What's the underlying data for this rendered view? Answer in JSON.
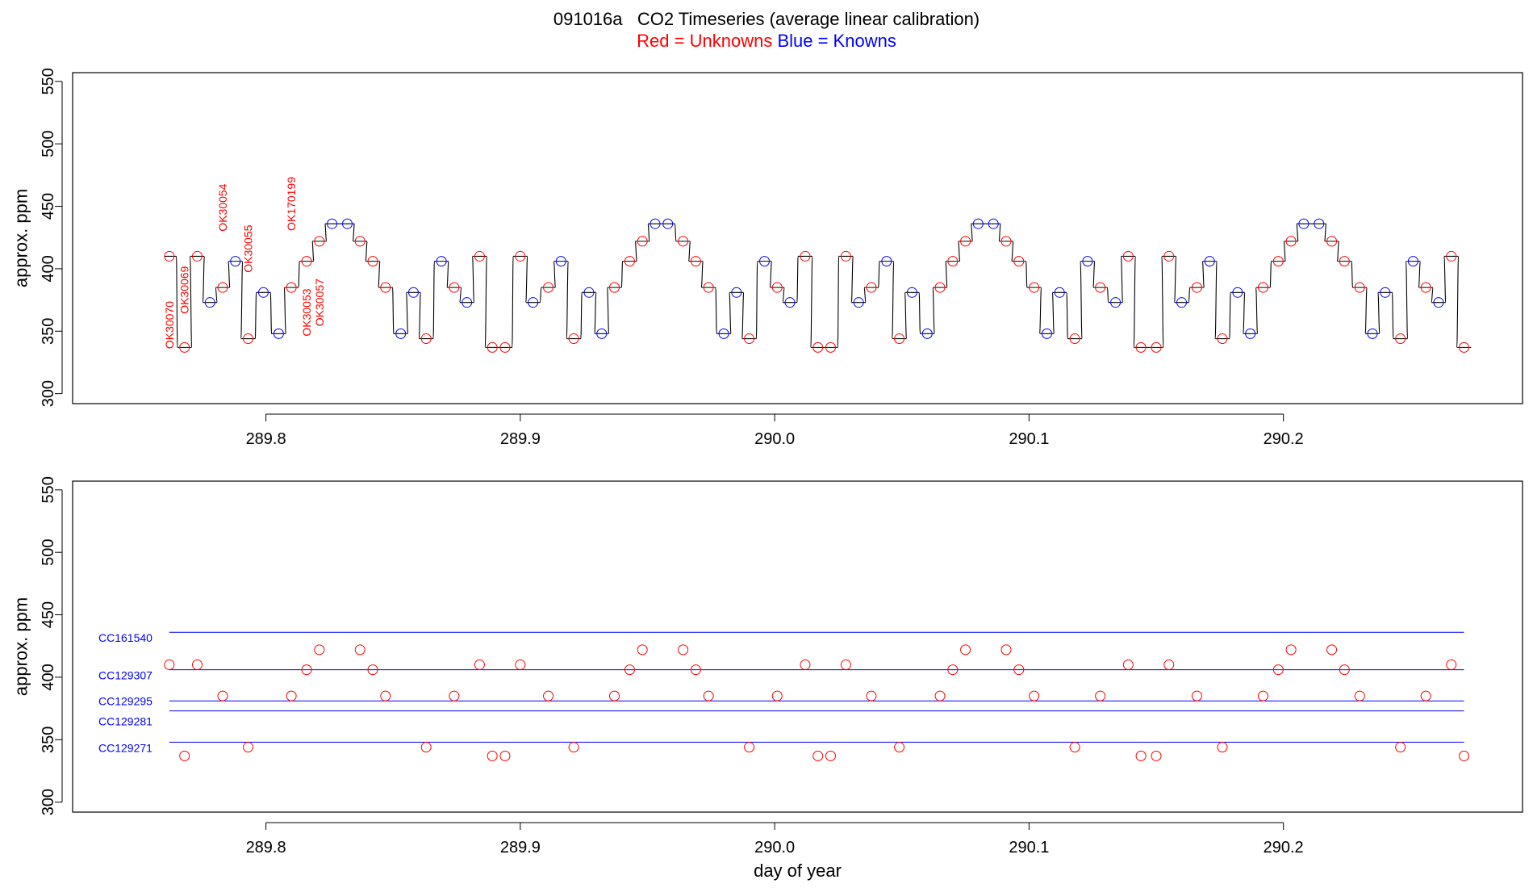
{
  "header": {
    "title": "091016a   CO2 Timeseries (average linear calibration)",
    "legend_red": "Red = Unknowns",
    "legend_blue": "Blue = Knowns"
  },
  "colors": {
    "unknown": "#ff0000",
    "known": "#0000ff",
    "trace": "#000000"
  },
  "chart_data": [
    {
      "type": "line",
      "ylabel": "approx. ppm",
      "xlabel": "",
      "xlim": [
        289.724,
        290.294
      ],
      "ylim": [
        292,
        557
      ],
      "xticks": [
        289.8,
        289.9,
        290.0,
        290.1,
        290.2
      ],
      "xtick_labels": [
        "289.8",
        "289.9",
        "290.0",
        "290.1",
        "290.2"
      ],
      "yticks": [
        300,
        350,
        400,
        450,
        500,
        550
      ],
      "ytick_labels": [
        "300",
        "350",
        "400",
        "450",
        "500",
        "550"
      ],
      "points": [
        {
          "x": 289.762,
          "y": 410,
          "t": "u"
        },
        {
          "x": 289.768,
          "y": 337,
          "t": "u"
        },
        {
          "x": 289.773,
          "y": 410,
          "t": "u"
        },
        {
          "x": 289.778,
          "y": 373,
          "t": "k"
        },
        {
          "x": 289.783,
          "y": 385,
          "t": "u"
        },
        {
          "x": 289.788,
          "y": 406,
          "t": "k"
        },
        {
          "x": 289.793,
          "y": 344,
          "t": "u"
        },
        {
          "x": 289.799,
          "y": 381,
          "t": "k"
        },
        {
          "x": 289.805,
          "y": 348,
          "t": "k"
        },
        {
          "x": 289.81,
          "y": 385,
          "t": "u"
        },
        {
          "x": 289.816,
          "y": 406,
          "t": "u"
        },
        {
          "x": 289.821,
          "y": 422,
          "t": "u"
        },
        {
          "x": 289.826,
          "y": 436,
          "t": "k"
        },
        {
          "x": 289.832,
          "y": 436,
          "t": "k"
        },
        {
          "x": 289.837,
          "y": 422,
          "t": "u"
        },
        {
          "x": 289.842,
          "y": 406,
          "t": "u"
        },
        {
          "x": 289.847,
          "y": 385,
          "t": "u"
        },
        {
          "x": 289.853,
          "y": 348,
          "t": "k"
        },
        {
          "x": 289.858,
          "y": 381,
          "t": "k"
        },
        {
          "x": 289.863,
          "y": 344,
          "t": "u"
        },
        {
          "x": 289.869,
          "y": 406,
          "t": "k"
        },
        {
          "x": 289.874,
          "y": 385,
          "t": "u"
        },
        {
          "x": 289.879,
          "y": 373,
          "t": "k"
        },
        {
          "x": 289.884,
          "y": 410,
          "t": "u"
        },
        {
          "x": 289.889,
          "y": 337,
          "t": "u"
        },
        {
          "x": 289.894,
          "y": 337,
          "t": "u"
        },
        {
          "x": 289.9,
          "y": 410,
          "t": "u"
        },
        {
          "x": 289.905,
          "y": 373,
          "t": "k"
        },
        {
          "x": 289.911,
          "y": 385,
          "t": "u"
        },
        {
          "x": 289.916,
          "y": 406,
          "t": "k"
        },
        {
          "x": 289.921,
          "y": 344,
          "t": "u"
        },
        {
          "x": 289.927,
          "y": 381,
          "t": "k"
        },
        {
          "x": 289.932,
          "y": 348,
          "t": "k"
        },
        {
          "x": 289.937,
          "y": 385,
          "t": "u"
        },
        {
          "x": 289.943,
          "y": 406,
          "t": "u"
        },
        {
          "x": 289.948,
          "y": 422,
          "t": "u"
        },
        {
          "x": 289.953,
          "y": 436,
          "t": "k"
        },
        {
          "x": 289.958,
          "y": 436,
          "t": "k"
        },
        {
          "x": 289.964,
          "y": 422,
          "t": "u"
        },
        {
          "x": 289.969,
          "y": 406,
          "t": "u"
        },
        {
          "x": 289.974,
          "y": 385,
          "t": "u"
        },
        {
          "x": 289.98,
          "y": 348,
          "t": "k"
        },
        {
          "x": 289.985,
          "y": 381,
          "t": "k"
        },
        {
          "x": 289.99,
          "y": 344,
          "t": "u"
        },
        {
          "x": 289.996,
          "y": 406,
          "t": "k"
        },
        {
          "x": 290.001,
          "y": 385,
          "t": "u"
        },
        {
          "x": 290.006,
          "y": 373,
          "t": "k"
        },
        {
          "x": 290.012,
          "y": 410,
          "t": "u"
        },
        {
          "x": 290.017,
          "y": 337,
          "t": "u"
        },
        {
          "x": 290.022,
          "y": 337,
          "t": "u"
        },
        {
          "x": 290.028,
          "y": 410,
          "t": "u"
        },
        {
          "x": 290.033,
          "y": 373,
          "t": "k"
        },
        {
          "x": 290.038,
          "y": 385,
          "t": "u"
        },
        {
          "x": 290.044,
          "y": 406,
          "t": "k"
        },
        {
          "x": 290.049,
          "y": 344,
          "t": "u"
        },
        {
          "x": 290.054,
          "y": 381,
          "t": "k"
        },
        {
          "x": 290.06,
          "y": 348,
          "t": "k"
        },
        {
          "x": 290.065,
          "y": 385,
          "t": "u"
        },
        {
          "x": 290.07,
          "y": 406,
          "t": "u"
        },
        {
          "x": 290.075,
          "y": 422,
          "t": "u"
        },
        {
          "x": 290.08,
          "y": 436,
          "t": "k"
        },
        {
          "x": 290.086,
          "y": 436,
          "t": "k"
        },
        {
          "x": 290.091,
          "y": 422,
          "t": "u"
        },
        {
          "x": 290.096,
          "y": 406,
          "t": "u"
        },
        {
          "x": 290.102,
          "y": 385,
          "t": "u"
        },
        {
          "x": 290.107,
          "y": 348,
          "t": "k"
        },
        {
          "x": 290.112,
          "y": 381,
          "t": "k"
        },
        {
          "x": 290.118,
          "y": 344,
          "t": "u"
        },
        {
          "x": 290.123,
          "y": 406,
          "t": "k"
        },
        {
          "x": 290.128,
          "y": 385,
          "t": "u"
        },
        {
          "x": 290.134,
          "y": 373,
          "t": "k"
        },
        {
          "x": 290.139,
          "y": 410,
          "t": "u"
        },
        {
          "x": 290.144,
          "y": 337,
          "t": "u"
        },
        {
          "x": 290.15,
          "y": 337,
          "t": "u"
        },
        {
          "x": 290.155,
          "y": 410,
          "t": "u"
        },
        {
          "x": 290.16,
          "y": 373,
          "t": "k"
        },
        {
          "x": 290.166,
          "y": 385,
          "t": "u"
        },
        {
          "x": 290.171,
          "y": 406,
          "t": "k"
        },
        {
          "x": 290.176,
          "y": 344,
          "t": "u"
        },
        {
          "x": 290.182,
          "y": 381,
          "t": "k"
        },
        {
          "x": 290.187,
          "y": 348,
          "t": "k"
        },
        {
          "x": 290.192,
          "y": 385,
          "t": "u"
        },
        {
          "x": 290.198,
          "y": 406,
          "t": "u"
        },
        {
          "x": 290.203,
          "y": 422,
          "t": "u"
        },
        {
          "x": 290.208,
          "y": 436,
          "t": "k"
        },
        {
          "x": 290.214,
          "y": 436,
          "t": "k"
        },
        {
          "x": 290.219,
          "y": 422,
          "t": "u"
        },
        {
          "x": 290.224,
          "y": 406,
          "t": "u"
        },
        {
          "x": 290.23,
          "y": 385,
          "t": "u"
        },
        {
          "x": 290.235,
          "y": 348,
          "t": "k"
        },
        {
          "x": 290.24,
          "y": 381,
          "t": "k"
        },
        {
          "x": 290.246,
          "y": 344,
          "t": "u"
        },
        {
          "x": 290.251,
          "y": 406,
          "t": "k"
        },
        {
          "x": 290.256,
          "y": 385,
          "t": "u"
        },
        {
          "x": 290.261,
          "y": 373,
          "t": "k"
        },
        {
          "x": 290.266,
          "y": 410,
          "t": "u"
        },
        {
          "x": 290.271,
          "y": 337,
          "t": "u"
        }
      ],
      "annotations": [
        {
          "text": "OK30070",
          "x": 289.762,
          "y": 355
        },
        {
          "text": "OK30069",
          "x": 289.768,
          "y": 383
        },
        {
          "text": "OK30054",
          "x": 289.783,
          "y": 449
        },
        {
          "text": "OK30055",
          "x": 289.793,
          "y": 416
        },
        {
          "text": "OK170199",
          "x": 289.81,
          "y": 452
        },
        {
          "text": "OK30053",
          "x": 289.816,
          "y": 365
        },
        {
          "text": "OK30057",
          "x": 289.821,
          "y": 373
        }
      ]
    },
    {
      "type": "scatter",
      "ylabel": "approx. ppm",
      "xlabel": "day of year",
      "xlim": [
        289.724,
        290.294
      ],
      "ylim": [
        292,
        557
      ],
      "xticks": [
        289.8,
        289.9,
        290.0,
        290.1,
        290.2
      ],
      "xtick_labels": [
        "289.8",
        "289.9",
        "290.0",
        "290.1",
        "290.2"
      ],
      "yticks": [
        300,
        350,
        400,
        450,
        500,
        550
      ],
      "ytick_labels": [
        "300",
        "350",
        "400",
        "450",
        "500",
        "550"
      ],
      "reference_lines": [
        {
          "name": "CC161540",
          "y": 436
        },
        {
          "name": "CC129307",
          "y": 406
        },
        {
          "name": "CC129295",
          "y": 381
        },
        {
          "name": "CC129281",
          "y": 373
        },
        {
          "name": "CC129271",
          "y": 348
        }
      ],
      "unknowns": [
        [
          289.762,
          410
        ],
        [
          289.768,
          337
        ],
        [
          289.773,
          410
        ],
        [
          289.783,
          385
        ],
        [
          289.793,
          344
        ],
        [
          289.81,
          385
        ],
        [
          289.816,
          406
        ],
        [
          289.821,
          422
        ],
        [
          289.837,
          422
        ],
        [
          289.842,
          406
        ],
        [
          289.847,
          385
        ],
        [
          289.863,
          344
        ],
        [
          289.874,
          385
        ],
        [
          289.884,
          410
        ],
        [
          289.889,
          337
        ],
        [
          289.894,
          337
        ],
        [
          289.9,
          410
        ],
        [
          289.911,
          385
        ],
        [
          289.921,
          344
        ],
        [
          289.937,
          385
        ],
        [
          289.943,
          406
        ],
        [
          289.948,
          422
        ],
        [
          289.964,
          422
        ],
        [
          289.969,
          406
        ],
        [
          289.974,
          385
        ],
        [
          289.99,
          344
        ],
        [
          290.001,
          385
        ],
        [
          290.012,
          410
        ],
        [
          290.017,
          337
        ],
        [
          290.022,
          337
        ],
        [
          290.028,
          410
        ],
        [
          290.038,
          385
        ],
        [
          290.049,
          344
        ],
        [
          290.065,
          385
        ],
        [
          290.07,
          406
        ],
        [
          290.075,
          422
        ],
        [
          290.091,
          422
        ],
        [
          290.096,
          406
        ],
        [
          290.102,
          385
        ],
        [
          290.118,
          344
        ],
        [
          290.128,
          385
        ],
        [
          290.139,
          410
        ],
        [
          290.144,
          337
        ],
        [
          290.15,
          337
        ],
        [
          290.155,
          410
        ],
        [
          290.166,
          385
        ],
        [
          290.176,
          344
        ],
        [
          290.192,
          385
        ],
        [
          290.198,
          406
        ],
        [
          290.203,
          422
        ],
        [
          290.219,
          422
        ],
        [
          290.224,
          406
        ],
        [
          290.23,
          385
        ],
        [
          290.246,
          344
        ],
        [
          290.256,
          385
        ],
        [
          290.266,
          410
        ],
        [
          290.271,
          337
        ]
      ]
    }
  ]
}
